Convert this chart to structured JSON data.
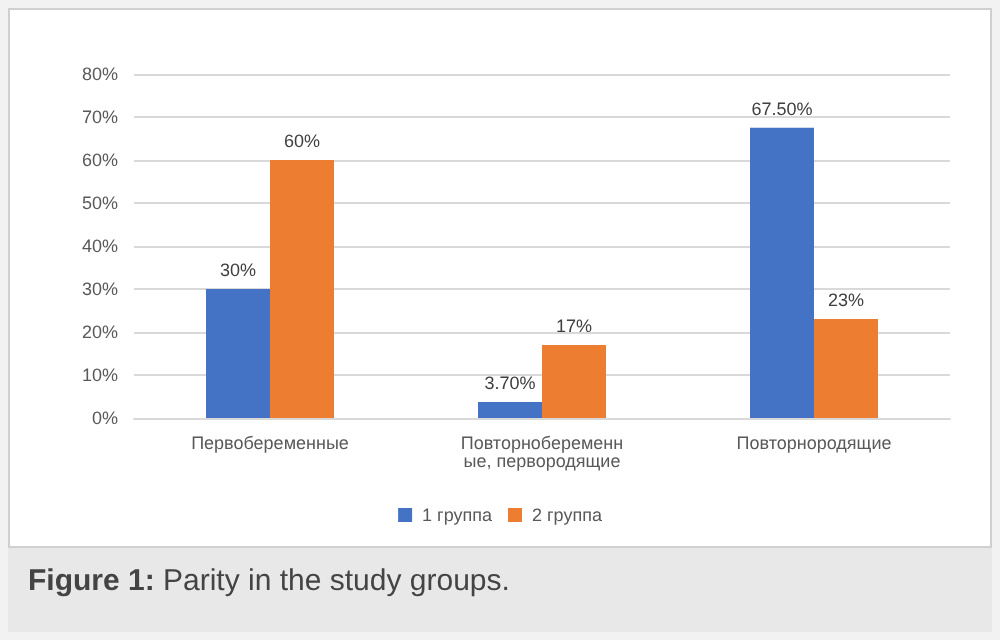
{
  "chart_data": {
    "type": "bar",
    "categories": [
      "Первобеременные",
      "Повторнобеременные, первородящие",
      "Повторнородящие"
    ],
    "series": [
      {
        "name": "1 группа",
        "color": "#4472c4",
        "values": [
          30,
          3.7,
          67.5
        ],
        "value_labels": [
          "30%",
          "3.70%",
          "67.50%"
        ]
      },
      {
        "name": "2 группа",
        "color": "#ed7d31",
        "values": [
          60,
          17,
          23
        ],
        "value_labels": [
          "60%",
          "17%",
          "23%"
        ]
      }
    ],
    "ylim": [
      0,
      80
    ],
    "yticks": [
      {
        "value": 0,
        "label": "0%"
      },
      {
        "value": 10,
        "label": "10%"
      },
      {
        "value": 20,
        "label": "20%"
      },
      {
        "value": 30,
        "label": "30%"
      },
      {
        "value": 40,
        "label": "40%"
      },
      {
        "value": 50,
        "label": "50%"
      },
      {
        "value": 60,
        "label": "60%"
      },
      {
        "value": 70,
        "label": "70%"
      },
      {
        "value": 80,
        "label": "80%"
      }
    ],
    "grid": "y",
    "legend": "bottom",
    "annotations": [
      "Figure 1: Parity in the study groups."
    ]
  }
}
